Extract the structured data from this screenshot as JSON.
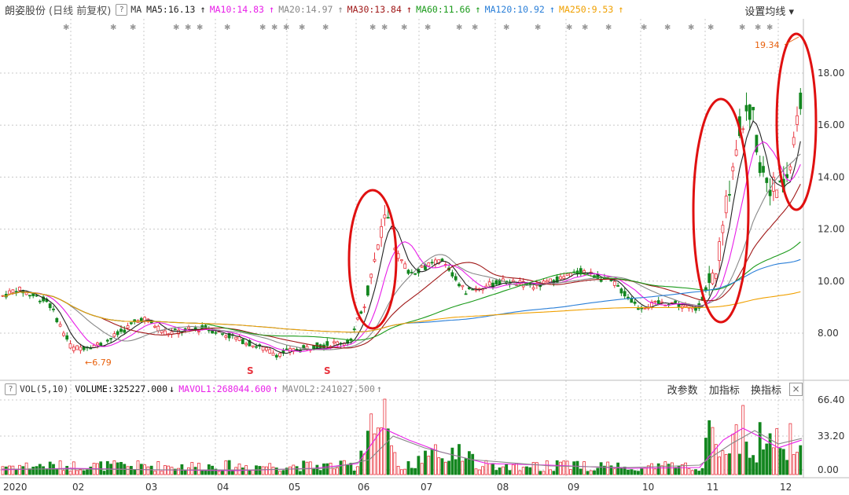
{
  "header": {
    "stock_name": "朗姿股份",
    "period": "(日线 前复权)",
    "help_icon": "?",
    "ma_label": "MA",
    "ma_items": [
      {
        "label": "MA5:16.13",
        "color": "#222222",
        "arrow": "↑"
      },
      {
        "label": "MA10:14.83",
        "color": "#e81ee8",
        "arrow": "↑"
      },
      {
        "label": "MA20:14.97",
        "color": "#888888",
        "arrow": "↑"
      },
      {
        "label": "MA30:13.84",
        "color": "#a01818",
        "arrow": "↑"
      },
      {
        "label": "MA60:11.66",
        "color": "#1a9a1a",
        "arrow": "↑"
      },
      {
        "label": "MA120:10.92",
        "color": "#2a7fd8",
        "arrow": "↑"
      },
      {
        "label": "MA250:9.53",
        "color": "#f0a000",
        "arrow": "↑"
      }
    ],
    "settings_label": "设置均线 ▾"
  },
  "price_axis": [
    "18.00",
    "16.00",
    "14.00",
    "12.00",
    "10.00",
    "8.00"
  ],
  "annotations": {
    "high": "19.34",
    "low": "6.79",
    "s_marks": [
      "S",
      "S"
    ]
  },
  "volume_header": {
    "help_icon": "?",
    "vol_label": "VOL(5,10)",
    "volume": "VOLUME:325227.000",
    "volume_arrow": "↓",
    "mavol1": "MAVOL1:268044.600",
    "mavol1_arrow": "↑",
    "mavol2": "MAVOL2:241027.500",
    "mavol2_arrow": "↑",
    "actions": [
      "改参数",
      "加指标",
      "换指标"
    ],
    "close": "×"
  },
  "volume_axis": [
    "66.40",
    "33.20",
    "0.00"
  ],
  "months": [
    "2020",
    "02",
    "03",
    "04",
    "05",
    "06",
    "07",
    "08",
    "09",
    "10",
    "11",
    "12"
  ],
  "colors": {
    "up": "#e8323c",
    "down": "#13861f",
    "grid": "#c8c8c8",
    "circle": "#e01010"
  }
}
